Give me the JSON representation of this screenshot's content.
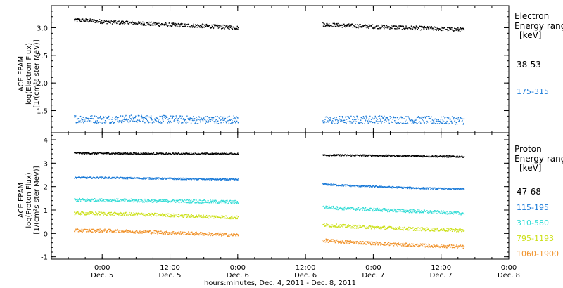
{
  "chart_data": [
    {
      "type": "scatter",
      "instrument_label": "ACE EPAM",
      "ylabel": "log(Electron Flux)",
      "yunit": "[1/(cm²s ster MeV)]",
      "ylim": [
        1.1,
        3.4
      ],
      "yticks": [
        1.5,
        2.0,
        2.5,
        3.0
      ],
      "ytick_labels": [
        "1.5",
        "2.0",
        "2.5",
        "3.0"
      ],
      "legend": {
        "title_lines": [
          "Electron",
          "Energy ranges",
          "[keV]"
        ],
        "placement": "right"
      },
      "series": [
        {
          "name": "38-53",
          "color": "#000000",
          "segments": [
            {
              "x": [
                -5,
                0,
                6,
                12,
                18,
                24
              ],
              "y": [
                3.15,
                3.12,
                3.09,
                3.06,
                3.04,
                3.01
              ]
            },
            {
              "x": [
                39,
                42,
                48,
                54,
                60,
                64
              ],
              "y": [
                3.07,
                3.05,
                3.03,
                3.01,
                2.99,
                2.97
              ]
            }
          ]
        },
        {
          "name": "175-315",
          "color": "#1a7ad8",
          "segments": [
            {
              "x": [
                -5,
                0,
                6,
                12,
                18,
                24
              ],
              "y": [
                1.36,
                1.35,
                1.36,
                1.35,
                1.34,
                1.35
              ]
            },
            {
              "x": [
                39,
                42,
                48,
                54,
                60,
                64
              ],
              "y": [
                1.33,
                1.34,
                1.35,
                1.34,
                1.33,
                1.33
              ]
            }
          ]
        }
      ]
    },
    {
      "type": "scatter",
      "instrument_label": "ACE EPAM",
      "ylabel": "log(Proton Flux)",
      "yunit": "[1/(cm²s ster MeV)]",
      "ylim": [
        -1.1,
        4.3
      ],
      "yticks": [
        -1,
        0,
        1,
        2,
        3,
        4
      ],
      "ytick_labels": [
        "-1",
        "0",
        "1",
        "2",
        "3",
        "4"
      ],
      "legend": {
        "title_lines": [
          "Proton",
          "Energy ranges",
          "[keV]"
        ],
        "placement": "right"
      },
      "series": [
        {
          "name": "47-68",
          "color": "#000000",
          "segments": [
            {
              "x": [
                -5,
                0,
                6,
                12,
                18,
                24
              ],
              "y": [
                3.45,
                3.44,
                3.43,
                3.42,
                3.42,
                3.42
              ]
            },
            {
              "x": [
                39,
                42,
                48,
                54,
                60,
                64
              ],
              "y": [
                3.37,
                3.36,
                3.35,
                3.33,
                3.31,
                3.3
              ]
            }
          ]
        },
        {
          "name": "115-195",
          "color": "#1a7ad8",
          "segments": [
            {
              "x": [
                -5,
                0,
                6,
                12,
                18,
                24
              ],
              "y": [
                2.4,
                2.4,
                2.38,
                2.36,
                2.34,
                2.32
              ]
            },
            {
              "x": [
                39,
                42,
                48,
                54,
                60,
                64
              ],
              "y": [
                2.12,
                2.08,
                2.02,
                1.97,
                1.93,
                1.92
              ]
            }
          ]
        },
        {
          "name": "310-580",
          "color": "#33dcd6",
          "segments": [
            {
              "x": [
                -5,
                0,
                6,
                12,
                18,
                24
              ],
              "y": [
                1.45,
                1.44,
                1.42,
                1.41,
                1.38,
                1.36
              ]
            },
            {
              "x": [
                39,
                42,
                48,
                54,
                60,
                64
              ],
              "y": [
                1.15,
                1.1,
                1.04,
                0.98,
                0.92,
                0.88
              ]
            }
          ]
        },
        {
          "name": "795-1193",
          "color": "#cce01a",
          "segments": [
            {
              "x": [
                -5,
                0,
                6,
                12,
                18,
                24
              ],
              "y": [
                0.88,
                0.87,
                0.84,
                0.8,
                0.74,
                0.7
              ]
            },
            {
              "x": [
                39,
                42,
                48,
                54,
                60,
                64
              ],
              "y": [
                0.38,
                0.34,
                0.28,
                0.22,
                0.18,
                0.15
              ]
            }
          ]
        },
        {
          "name": "1060-1900",
          "color": "#f0922a",
          "segments": [
            {
              "x": [
                -5,
                0,
                6,
                12,
                18,
                24
              ],
              "y": [
                0.15,
                0.14,
                0.1,
                0.05,
                0.0,
                -0.05
              ]
            },
            {
              "x": [
                39,
                42,
                48,
                54,
                60,
                64
              ],
              "y": [
                -0.28,
                -0.33,
                -0.4,
                -0.47,
                -0.52,
                -0.55
              ]
            }
          ]
        }
      ]
    }
  ],
  "x_axis": {
    "xlim": [
      -9,
      72
    ],
    "ticks": [
      0,
      12,
      24,
      36,
      48,
      60,
      72
    ],
    "tick_time_labels": [
      "0:00",
      "12:00",
      "0:00",
      "12:00",
      "0:00",
      "12:00",
      "0:00"
    ],
    "tick_date_labels": [
      "Dec. 5",
      "Dec. 5",
      "Dec. 6",
      "Dec. 6",
      "Dec. 7",
      "Dec. 7",
      "Dec. 8"
    ],
    "label": "hours:minutes, Dec.  4, 2011 - Dec.  8, 2011",
    "minor_step": 3
  }
}
